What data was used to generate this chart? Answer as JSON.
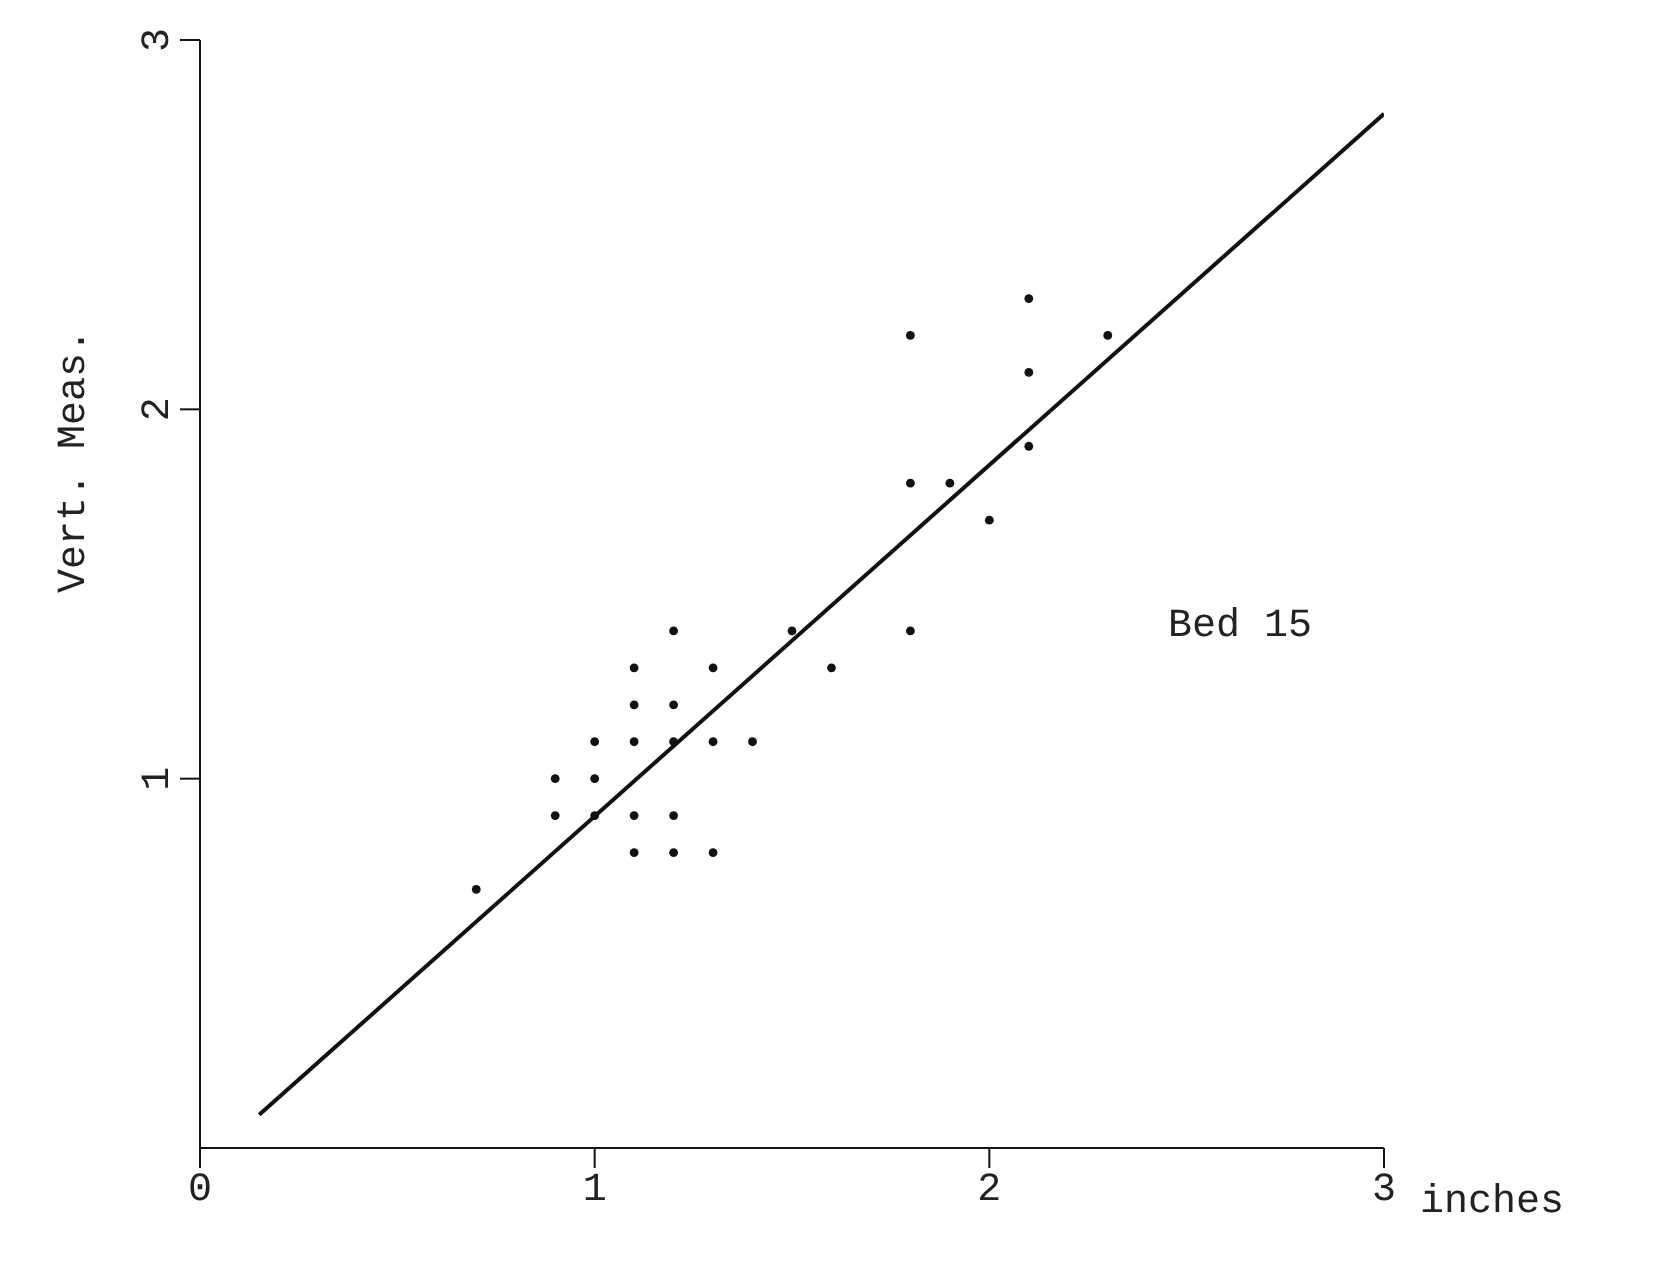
{
  "chart_data": {
    "type": "scatter",
    "xlabel": "inches",
    "ylabel": "Vert. Meas.",
    "annotations": [
      "Bed 15"
    ],
    "xlim": [
      0,
      3
    ],
    "ylim": [
      0,
      3
    ],
    "xticks": [
      0,
      1,
      2,
      3
    ],
    "yticks": [
      1,
      2,
      3
    ],
    "grid": false,
    "legend": false,
    "series": [
      {
        "color": "#111111",
        "marker": "circle",
        "x": [
          0.7,
          0.9,
          0.9,
          1.0,
          1.0,
          1.0,
          1.1,
          1.1,
          1.1,
          1.1,
          1.1,
          1.2,
          1.2,
          1.2,
          1.2,
          1.2,
          1.3,
          1.3,
          1.3,
          1.4,
          1.5,
          1.6,
          1.8,
          1.8,
          1.8,
          1.9,
          2.0,
          2.1,
          2.1,
          2.1,
          2.3
        ],
        "values": [
          0.7,
          1.0,
          0.9,
          1.1,
          1.0,
          0.9,
          1.3,
          1.2,
          1.1,
          0.9,
          0.8,
          1.4,
          1.2,
          1.1,
          0.9,
          0.8,
          1.3,
          1.1,
          0.8,
          1.1,
          1.4,
          1.3,
          2.2,
          1.8,
          1.4,
          1.8,
          1.7,
          2.3,
          2.1,
          1.9,
          2.2
        ]
      },
      {
        "type": "line",
        "color": "#111111",
        "line_style": "solid",
        "marker": "none",
        "x": [
          0.15,
          3.0
        ],
        "values": [
          0.09,
          2.8
        ]
      }
    ]
  }
}
